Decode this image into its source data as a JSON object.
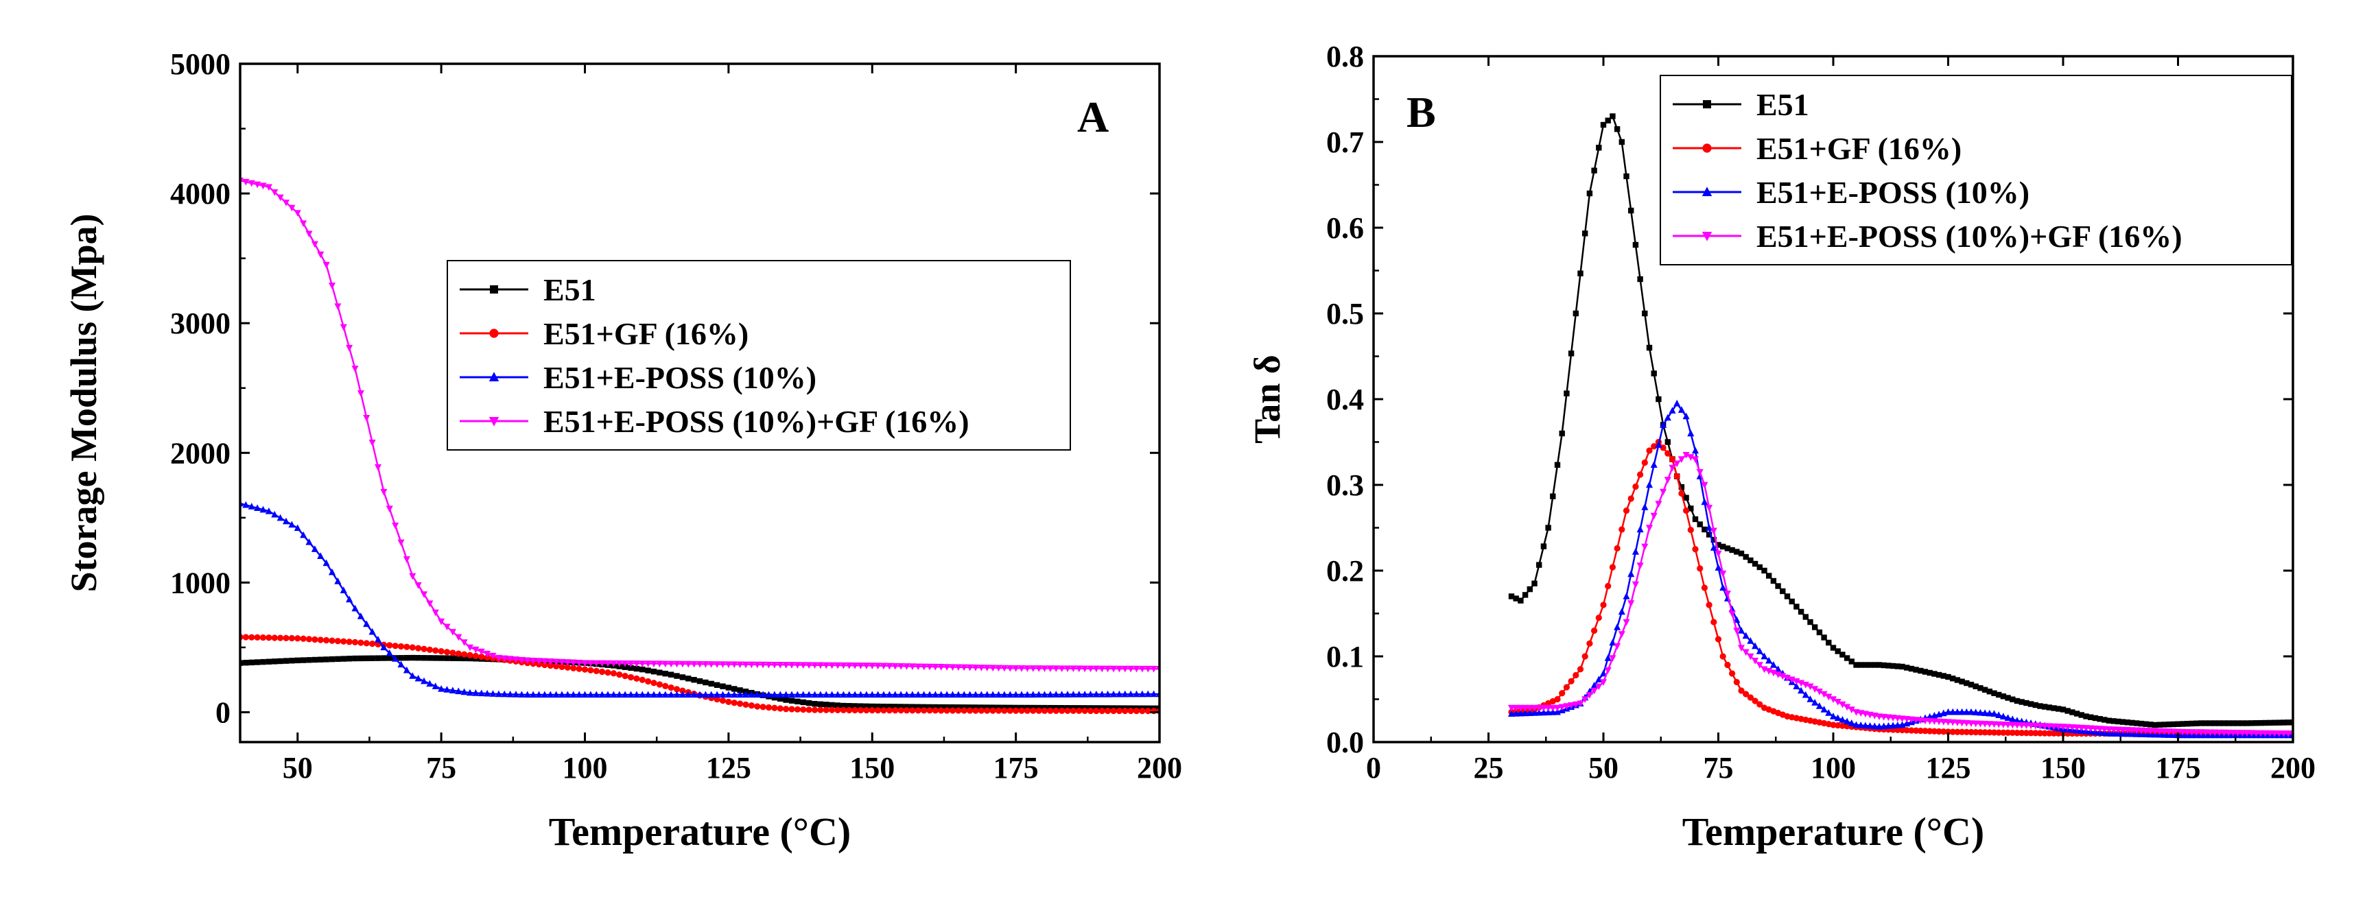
{
  "chart_data": [
    {
      "panel": "A",
      "type": "line",
      "xlabel": "Temperature (°C)",
      "ylabel": "Storage Modulus (Mpa)",
      "xlim": [
        40,
        200
      ],
      "ylim": [
        -230,
        5000
      ],
      "xticks": [
        50,
        75,
        100,
        125,
        150,
        175,
        200
      ],
      "yticks": [
        0,
        1000,
        2000,
        3000,
        4000,
        5000
      ],
      "legend_position": "center",
      "series": [
        {
          "name": "E51",
          "color": "#000000",
          "marker": "square",
          "x": [
            40,
            50,
            60,
            70,
            80,
            90,
            100,
            105,
            110,
            115,
            120,
            125,
            130,
            135,
            140,
            145,
            150,
            160,
            175,
            200
          ],
          "y": [
            380,
            400,
            415,
            420,
            415,
            400,
            380,
            360,
            330,
            290,
            240,
            190,
            140,
            95,
            65,
            50,
            45,
            40,
            35,
            30
          ]
        },
        {
          "name": "E51+GF (16%)",
          "color": "#ff0000",
          "marker": "circle",
          "x": [
            40,
            50,
            60,
            70,
            80,
            90,
            100,
            105,
            110,
            115,
            120,
            125,
            130,
            135,
            140,
            150,
            175,
            200
          ],
          "y": [
            580,
            570,
            540,
            500,
            440,
            380,
            330,
            300,
            250,
            190,
            130,
            80,
            45,
            25,
            18,
            15,
            12,
            10
          ]
        },
        {
          "name": "E51+E-POSS (10%)",
          "color": "#0000ff",
          "marker": "triangle-up",
          "x": [
            40,
            45,
            50,
            55,
            60,
            65,
            70,
            75,
            80,
            85,
            90,
            100,
            125,
            150,
            175,
            200
          ],
          "y": [
            1610,
            1550,
            1420,
            1150,
            800,
            500,
            280,
            180,
            150,
            140,
            135,
            135,
            135,
            135,
            135,
            140
          ]
        },
        {
          "name": "E51+E-POSS (10%)+GF (16%)",
          "color": "#ff00ff",
          "marker": "triangle-down",
          "x": [
            40,
            45,
            50,
            55,
            60,
            65,
            70,
            75,
            80,
            85,
            90,
            100,
            125,
            150,
            175,
            200
          ],
          "y": [
            4100,
            4050,
            3850,
            3450,
            2650,
            1700,
            1050,
            700,
            500,
            420,
            400,
            380,
            370,
            360,
            340,
            335
          ]
        }
      ]
    },
    {
      "panel": "B",
      "type": "line",
      "xlabel": "Temperature (°C)",
      "ylabel": "Tan δ",
      "xlim": [
        0,
        200
      ],
      "ylim": [
        0.0,
        0.8
      ],
      "xticks": [
        0,
        25,
        50,
        75,
        100,
        125,
        150,
        175,
        200
      ],
      "yticks": [
        0.0,
        0.1,
        0.2,
        0.3,
        0.4,
        0.5,
        0.6,
        0.7,
        0.8
      ],
      "legend_position": "top-right",
      "series": [
        {
          "name": "E51",
          "color": "#000000",
          "marker": "square",
          "x": [
            30,
            32,
            35,
            38,
            41,
            44,
            47,
            50,
            52,
            54,
            57,
            60,
            63,
            66,
            70,
            75,
            80,
            85,
            90,
            95,
            100,
            105,
            110,
            115,
            120,
            125,
            130,
            135,
            140,
            145,
            150,
            155,
            160,
            170,
            180,
            190,
            200
          ],
          "y": [
            0.17,
            0.165,
            0.185,
            0.25,
            0.36,
            0.5,
            0.64,
            0.72,
            0.73,
            0.7,
            0.58,
            0.46,
            0.37,
            0.31,
            0.26,
            0.23,
            0.22,
            0.2,
            0.17,
            0.14,
            0.11,
            0.09,
            0.09,
            0.088,
            0.082,
            0.076,
            0.067,
            0.057,
            0.048,
            0.042,
            0.038,
            0.03,
            0.025,
            0.02,
            0.022,
            0.022,
            0.023
          ]
        },
        {
          "name": "E51+GF (16%)",
          "color": "#ff0000",
          "marker": "circle",
          "x": [
            30,
            35,
            40,
            45,
            50,
            55,
            60,
            62,
            65,
            68,
            72,
            76,
            80,
            85,
            90,
            95,
            100,
            110,
            125,
            150,
            175,
            200
          ],
          "y": [
            0.035,
            0.038,
            0.05,
            0.085,
            0.16,
            0.27,
            0.34,
            0.35,
            0.33,
            0.27,
            0.18,
            0.1,
            0.06,
            0.04,
            0.03,
            0.025,
            0.02,
            0.015,
            0.012,
            0.01,
            0.01,
            0.01
          ]
        },
        {
          "name": "E51+E-POSS (10%)",
          "color": "#0000ff",
          "marker": "triangle-up",
          "x": [
            30,
            40,
            45,
            50,
            55,
            60,
            63,
            66,
            68,
            70,
            73,
            76,
            80,
            85,
            90,
            95,
            100,
            105,
            110,
            115,
            120,
            125,
            130,
            135,
            140,
            150,
            160,
            175,
            200
          ],
          "y": [
            0.033,
            0.035,
            0.045,
            0.08,
            0.17,
            0.3,
            0.37,
            0.395,
            0.38,
            0.34,
            0.25,
            0.18,
            0.13,
            0.1,
            0.075,
            0.05,
            0.03,
            0.02,
            0.018,
            0.02,
            0.028,
            0.035,
            0.035,
            0.033,
            0.025,
            0.015,
            0.01,
            0.008,
            0.008
          ]
        },
        {
          "name": "E51+E-POSS (10%)+GF (16%)",
          "color": "#ff00ff",
          "marker": "triangle-down",
          "x": [
            30,
            40,
            45,
            50,
            55,
            60,
            65,
            68,
            70,
            72,
            75,
            78,
            80,
            85,
            90,
            95,
            100,
            105,
            110,
            120,
            130,
            140,
            150,
            160,
            175,
            200
          ],
          "y": [
            0.04,
            0.04,
            0.045,
            0.07,
            0.14,
            0.25,
            0.32,
            0.335,
            0.33,
            0.3,
            0.22,
            0.15,
            0.11,
            0.085,
            0.075,
            0.065,
            0.05,
            0.035,
            0.03,
            0.025,
            0.022,
            0.02,
            0.018,
            0.015,
            0.012,
            0.01
          ]
        }
      ]
    }
  ]
}
